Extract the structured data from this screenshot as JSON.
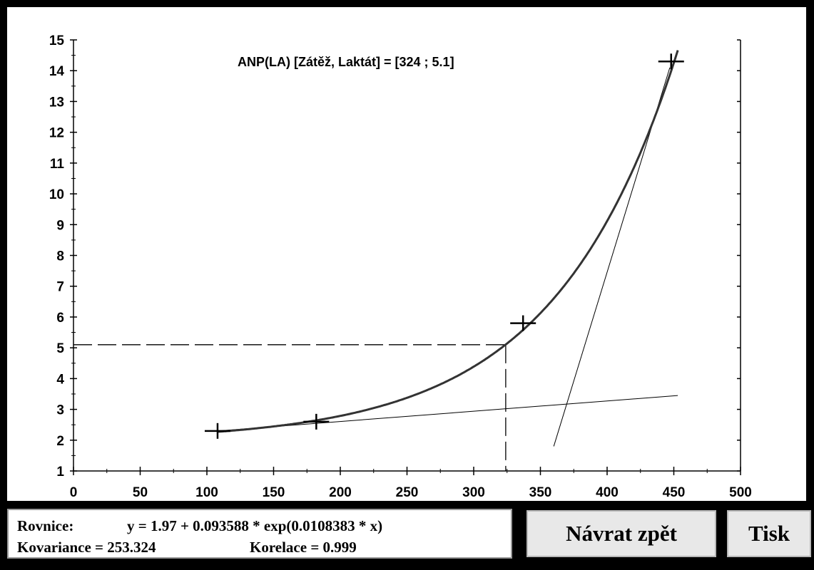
{
  "chart_data": {
    "type": "scatter",
    "annotation": "ANP(LA) [Zátěž, Laktát] = [324 ; 5.1]",
    "xlim": [
      0,
      500
    ],
    "ylim": [
      1,
      15
    ],
    "x_ticks": [
      "0",
      "50",
      "100",
      "150",
      "200",
      "250",
      "300",
      "350",
      "400",
      "450",
      "500"
    ],
    "y_ticks": [
      "1",
      "2",
      "3",
      "4",
      "5",
      "6",
      "7",
      "8",
      "9",
      "10",
      "11",
      "12",
      "13",
      "14",
      "15"
    ],
    "points": [
      {
        "x": 108,
        "y": 2.3
      },
      {
        "x": 182,
        "y": 2.6
      },
      {
        "x": 337,
        "y": 5.8
      },
      {
        "x": 448,
        "y": 14.3
      }
    ],
    "fit_curve": {
      "a": 1.97,
      "b": 0.093588,
      "c": 0.0108383,
      "x_from": 108,
      "x_to": 453
    },
    "tangent_low": {
      "x1": 108,
      "y1": 2.3,
      "x2": 453,
      "y2": 3.45
    },
    "tangent_high": {
      "x1": 360,
      "y1": 1.8,
      "x2": 447,
      "y2": 14.1
    },
    "threshold": {
      "x": 324,
      "y": 5.1
    },
    "grid": false
  },
  "info": {
    "equation_label": "Rovnice:",
    "equation": "y = 1.97 + 0.093588  *  exp(0.0108383  *  x)",
    "covariance": "Kovariance =  253.324",
    "correlation": "Korelace =  0.999"
  },
  "buttons": {
    "back": "Návrat zpět",
    "print": "Tisk"
  }
}
